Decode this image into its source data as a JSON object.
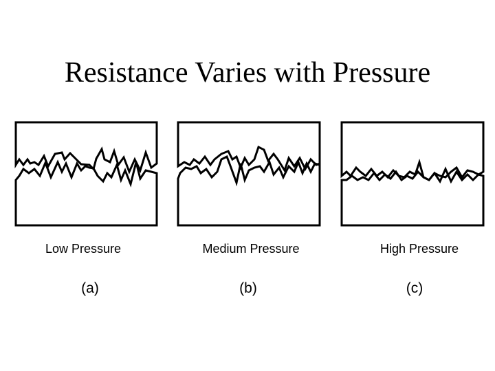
{
  "title": "Resistance Varies with Pressure",
  "panels": [
    {
      "caption": "Low Pressure",
      "letter": "(a)"
    },
    {
      "caption": "Medium Pressure",
      "letter": "(b)"
    },
    {
      "caption": "High Pressure",
      "letter": "(c)"
    }
  ]
}
